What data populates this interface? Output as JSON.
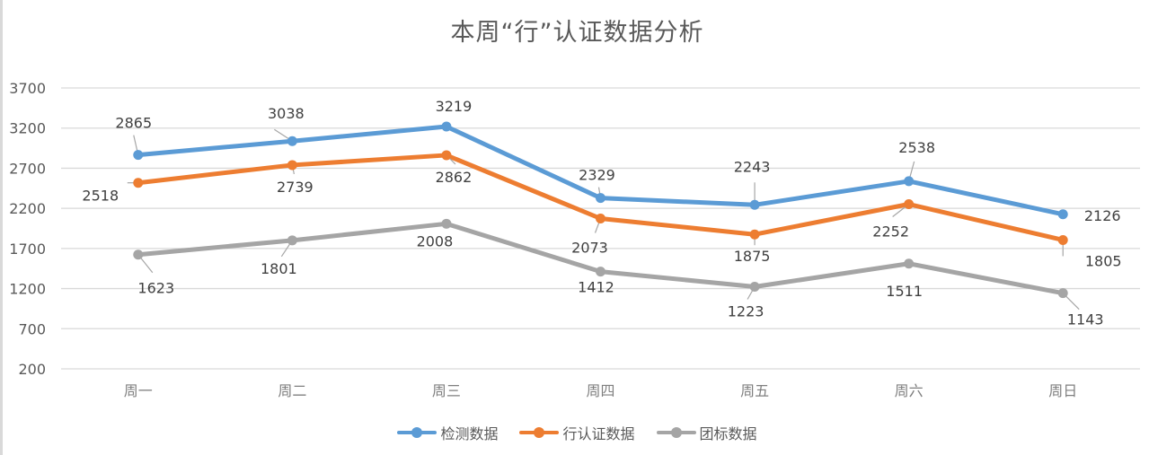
{
  "chart_data": {
    "type": "line",
    "title": "本周“行”认证数据分析",
    "xlabel": "",
    "ylabel": "",
    "categories": [
      "周一",
      "周二",
      "周三",
      "周四",
      "周五",
      "周六",
      "周日"
    ],
    "series": [
      {
        "name": "检测数据",
        "color": "#5b9bd5",
        "values": [
          2865,
          3038,
          3219,
          2329,
          2243,
          2538,
          2126
        ]
      },
      {
        "name": "行认证数据",
        "color": "#ed7d31",
        "values": [
          2518,
          2739,
          2862,
          2073,
          1875,
          2252,
          1805
        ]
      },
      {
        "name": "团标数据",
        "color": "#a5a5a5",
        "values": [
          1623,
          1801,
          2008,
          1412,
          1223,
          1511,
          1143
        ]
      }
    ],
    "yticks": [
      200,
      700,
      1200,
      1700,
      2200,
      2700,
      3200,
      3700
    ],
    "ylim": [
      200,
      3700
    ],
    "grid": true,
    "legend_position": "bottom",
    "data_labels": true
  },
  "legend": {
    "items": [
      "检测数据",
      "行认证数据",
      "团标数据"
    ]
  }
}
